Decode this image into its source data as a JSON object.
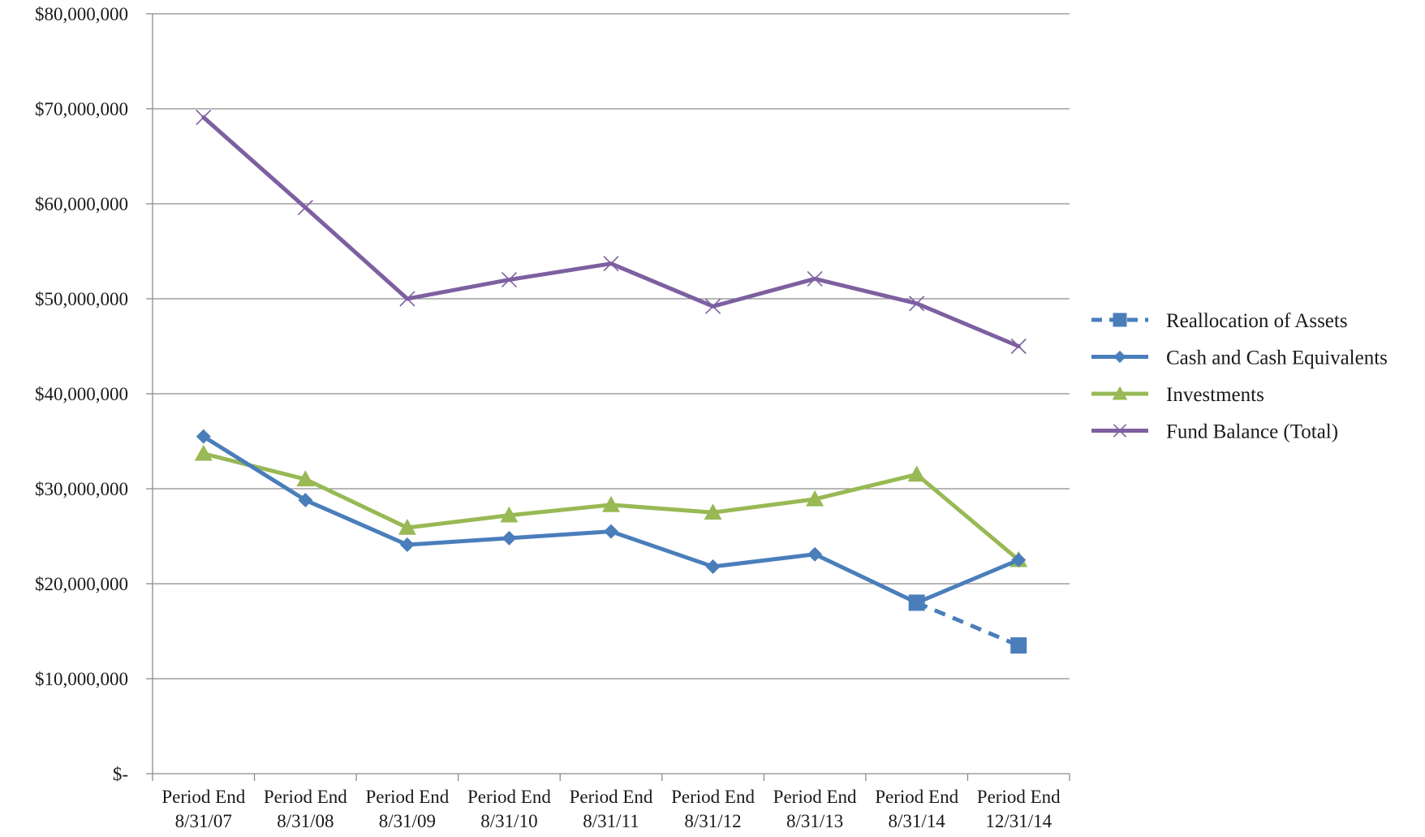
{
  "chart_data": {
    "type": "line",
    "title": "",
    "xlabel": "",
    "ylabel": "",
    "ylim": [
      0,
      80000000
    ],
    "y_tick_values": [
      0,
      10000000,
      20000000,
      30000000,
      40000000,
      50000000,
      60000000,
      70000000,
      80000000
    ],
    "y_tick_labels": [
      "$-",
      "$10,000,000",
      "$20,000,000",
      "$30,000,000",
      "$40,000,000",
      "$50,000,000",
      "$60,000,000",
      "$70,000,000",
      "$80,000,000"
    ],
    "categories": [
      [
        "Period End",
        "8/31/07"
      ],
      [
        "Period End",
        "8/31/08"
      ],
      [
        "Period End",
        "8/31/09"
      ],
      [
        "Period End",
        "8/31/10"
      ],
      [
        "Period End",
        "8/31/11"
      ],
      [
        "Period End",
        "8/31/12"
      ],
      [
        "Period End",
        "8/31/13"
      ],
      [
        "Period End",
        "8/31/14"
      ],
      [
        "Period End",
        "12/31/14"
      ]
    ],
    "grid": "horizontal",
    "legend_position": "right",
    "series": [
      {
        "name": "Reallocation of Assets",
        "color": "#4A7EBB",
        "marker": "square",
        "line_style": "dashed",
        "values": [
          null,
          null,
          null,
          null,
          null,
          null,
          null,
          18000000,
          13500000
        ]
      },
      {
        "name": "Cash and Cash Equivalents",
        "color": "#4A7EBB",
        "marker": "diamond",
        "line_style": "solid",
        "values": [
          35500000,
          28800000,
          24100000,
          24800000,
          25500000,
          21800000,
          23100000,
          18000000,
          22500000
        ]
      },
      {
        "name": "Investments",
        "color": "#98B954",
        "marker": "triangle",
        "line_style": "solid",
        "values": [
          33700000,
          31000000,
          25900000,
          27200000,
          28300000,
          27500000,
          28900000,
          31500000,
          22500000
        ]
      },
      {
        "name": "Fund Balance (Total)",
        "color": "#7D60A0",
        "marker": "x",
        "line_style": "solid",
        "values": [
          69100000,
          59600000,
          50000000,
          52000000,
          53700000,
          49200000,
          52100000,
          49500000,
          45000000
        ]
      }
    ]
  }
}
